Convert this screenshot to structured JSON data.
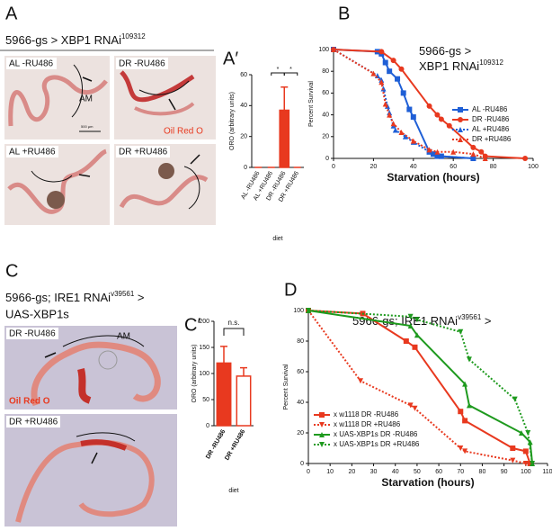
{
  "figure": {
    "A": {
      "letter": "A",
      "header": [
        "5966-gs > XBP1 RNAi",
        "109312"
      ],
      "scale_bar": "500 µm",
      "photos": [
        {
          "label": "AL -RU486",
          "region": "AM"
        },
        {
          "label": "DR -RU486",
          "stain": "Oil Red O"
        },
        {
          "label": "AL +RU486"
        },
        {
          "label": "DR +RU486"
        }
      ]
    },
    "A_prime": {
      "letter": "A′"
    },
    "B": {
      "letter": "B"
    },
    "C": {
      "letter": "C",
      "header": [
        "5966-gs; IRE1 RNAi",
        "v39561",
        " >",
        "UAS-XBP1s"
      ],
      "photos": [
        {
          "label": "DR -RU486",
          "region": "AM",
          "stain": "Oil Red O"
        },
        {
          "label": "DR +RU486"
        }
      ]
    },
    "C_prime": {
      "letter": "C′"
    },
    "D": {
      "letter": "D"
    }
  },
  "chart_data": [
    {
      "type": "bar",
      "categories": [
        "AL -RU486",
        "AL +RU486",
        "DR -RU486",
        "DR +RU486"
      ],
      "values": [
        0,
        0,
        37,
        0
      ],
      "errors": [
        0,
        0,
        15,
        0
      ],
      "colors": [
        "#e8391f",
        "#e8391f",
        "#e8391f",
        "#e8391f"
      ],
      "edgecolor": "#e8391f",
      "ylabel": "ORO (arbitrary units)",
      "xlabel": "diet",
      "ylim": [
        0,
        60
      ],
      "yticks": [
        0,
        20,
        40,
        60
      ],
      "annotations": [
        "*",
        "*"
      ]
    },
    {
      "type": "line",
      "title": [
        "5966-gs >",
        "XBP1 RNAi",
        "109312"
      ],
      "xlabel": "Starvation (hours)",
      "ylabel": "Percent Survival",
      "xlim": [
        0,
        100
      ],
      "xticks": [
        0,
        20,
        40,
        60,
        80,
        100
      ],
      "ylim": [
        0,
        100
      ],
      "yticks": [
        0,
        20,
        40,
        60,
        80,
        100
      ],
      "legend": "lower right",
      "series": [
        {
          "name": "AL -RU486",
          "color": "#1f5fd6",
          "marker": "square",
          "dotted": false,
          "x": [
            0,
            22,
            24,
            26,
            28,
            32,
            35,
            38,
            40,
            48,
            50,
            52,
            54,
            70
          ],
          "values": [
            100,
            98,
            96,
            88,
            80,
            73,
            60,
            45,
            38,
            6,
            4,
            2,
            2,
            0
          ]
        },
        {
          "name": "DR -RU486",
          "color": "#e8391f",
          "marker": "circle",
          "dotted": false,
          "x": [
            0,
            24,
            30,
            34,
            48,
            52,
            54,
            58,
            70,
            74,
            76,
            96
          ],
          "values": [
            100,
            98,
            90,
            82,
            48,
            40,
            36,
            30,
            10,
            6,
            2,
            0
          ]
        },
        {
          "name": "AL +RU486",
          "color": "#1f5fd6",
          "marker": "triangle",
          "dotted": true,
          "x": [
            0,
            22,
            24,
            25,
            27,
            28,
            30,
            31,
            36,
            40,
            48,
            50,
            54,
            70
          ],
          "values": [
            100,
            76,
            72,
            64,
            48,
            42,
            30,
            26,
            20,
            15,
            6,
            4,
            2,
            0
          ]
        },
        {
          "name": "DR +RU486",
          "color": "#e8391f",
          "marker": "triangle",
          "dotted": true,
          "x": [
            0,
            20,
            24,
            26,
            28,
            30,
            34,
            40,
            48,
            52,
            60,
            70,
            76
          ],
          "values": [
            100,
            78,
            70,
            50,
            40,
            32,
            24,
            16,
            8,
            6,
            6,
            4,
            0
          ]
        }
      ]
    },
    {
      "type": "bar",
      "categories": [
        "DR -RU486",
        "DR +RU486"
      ],
      "values": [
        120,
        95
      ],
      "errors": [
        32,
        16
      ],
      "colors": [
        "#e8391f",
        "#ffffff"
      ],
      "edgecolor": "#e8391f",
      "ylabel": "ORO (arbitrary units)",
      "xlabel": "diet",
      "ylim": [
        0,
        200
      ],
      "yticks": [
        0,
        50,
        100,
        150,
        200
      ],
      "annotations": [
        "n.s."
      ]
    },
    {
      "type": "line",
      "title": [
        "5966-gs; IRE1 RNAi",
        "v39561",
        " >"
      ],
      "xlabel": "Starvation (hours)",
      "ylabel": "Percent Survival",
      "xlim": [
        0,
        110
      ],
      "xticks": [
        0,
        10,
        20,
        30,
        40,
        50,
        60,
        70,
        80,
        90,
        100,
        110
      ],
      "ylim": [
        0,
        100
      ],
      "yticks": [
        0,
        20,
        40,
        60,
        80,
        100
      ],
      "legend": "lower left",
      "series": [
        {
          "name": "x w1118 DR -RU486",
          "color": "#e8391f",
          "marker": "square",
          "dotted": false,
          "x": [
            0,
            25,
            45,
            49,
            70,
            72,
            94,
            100,
            102
          ],
          "values": [
            100,
            98,
            80,
            76,
            34,
            28,
            10,
            8,
            0
          ]
        },
        {
          "name": "x w1118 DR +RU486",
          "color": "#e8391f",
          "marker": "triangle-down",
          "dotted": true,
          "x": [
            0,
            24,
            47,
            49,
            70,
            72,
            94,
            100
          ],
          "values": [
            100,
            54,
            38,
            36,
            10,
            8,
            2,
            0
          ]
        },
        {
          "name": "x UAS-XBP1s DR -RU486",
          "color": "#1e9a1e",
          "marker": "triangle",
          "dotted": false,
          "x": [
            0,
            47,
            50,
            72,
            74,
            98,
            102,
            103
          ],
          "values": [
            100,
            90,
            84,
            52,
            38,
            20,
            14,
            0
          ]
        },
        {
          "name": "x UAS-XBP1s DR +RU486",
          "color": "#1e9a1e",
          "marker": "triangle-down",
          "dotted": true,
          "x": [
            0,
            47,
            50,
            70,
            74,
            95,
            101,
            103
          ],
          "values": [
            100,
            96,
            94,
            86,
            68,
            42,
            20,
            0
          ]
        }
      ]
    }
  ]
}
